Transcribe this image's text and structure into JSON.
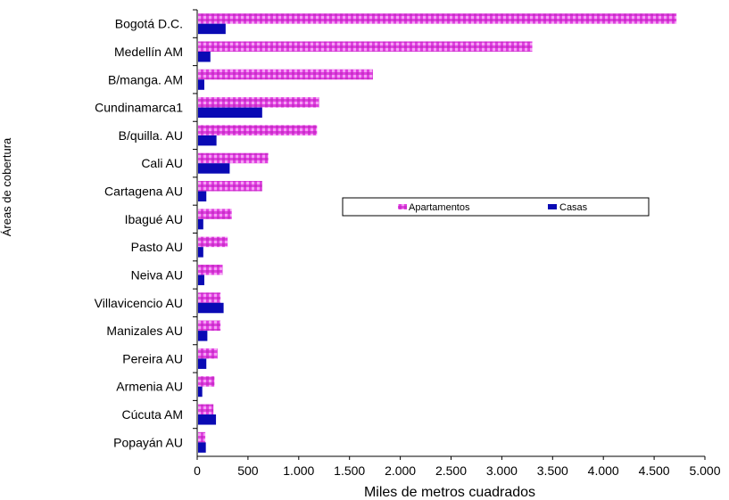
{
  "chart_data": {
    "type": "bar",
    "orientation": "horizontal",
    "categories": [
      "Bogotá D.C.",
      "Medellín AM",
      "B/manga. AM",
      "Cundinamarca1",
      "B/quilla. AU",
      "Cali AU",
      "Cartagena AU",
      "Ibagué AU",
      "Pasto AU",
      "Neiva AU",
      "Villavicencio AU",
      "Manizales AU",
      "Pereira AU",
      "Armenia AU",
      "Cúcuta AM",
      "Popayán AU"
    ],
    "series": [
      {
        "name": "Apartamentos",
        "color": "#e040e0",
        "pattern": "dots",
        "values": [
          4720,
          3300,
          1730,
          1200,
          1180,
          700,
          640,
          340,
          300,
          250,
          230,
          230,
          200,
          170,
          160,
          80
        ]
      },
      {
        "name": "Casas",
        "color": "#0a0ab4",
        "values": [
          280,
          130,
          70,
          640,
          190,
          320,
          90,
          60,
          60,
          70,
          260,
          100,
          90,
          50,
          185,
          85
        ]
      }
    ],
    "xticks": [
      "0",
      "500",
      "1.000",
      "1.500",
      "2.000",
      "2.500",
      "3.000",
      "3.500",
      "4.000",
      "4.500",
      "5.000"
    ],
    "xlim": [
      0,
      5000
    ],
    "xlabel": "Miles de metros cuadrados",
    "ylabel": "Áreas de cobertura",
    "title": "",
    "legend_position": "center-right",
    "grid": false
  }
}
